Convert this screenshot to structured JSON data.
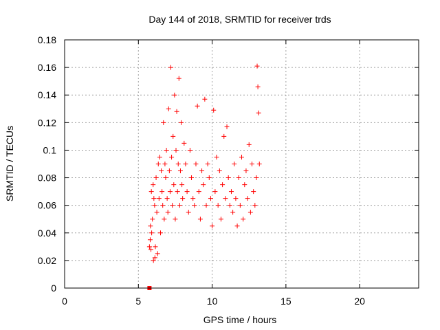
{
  "chart_data": {
    "type": "scatter",
    "title": "Day 144 of 2018, SRMTID for receiver trds",
    "xlabel": "GPS time / hours",
    "ylabel": "SRMTID / TECUs",
    "xlim": [
      0,
      24
    ],
    "ylim": [
      0,
      0.18
    ],
    "x_ticks": [
      0,
      5,
      10,
      15,
      20
    ],
    "x_tick_labels": [
      "0",
      "5",
      "10",
      "15",
      "20"
    ],
    "y_ticks": [
      0,
      0.02,
      0.04,
      0.06,
      0.08,
      0.1,
      0.12,
      0.14,
      0.16,
      0.18
    ],
    "y_tick_labels": [
      "0",
      "0.02",
      "0.04",
      "0.06",
      "0.08",
      "0.1",
      "0.12",
      "0.14",
      "0.16",
      "0.18"
    ],
    "grid": true,
    "marker": "plus",
    "marker_color": "#ff0000",
    "series": [
      {
        "x": [
          5.75,
          5.8,
          5.82,
          5.85,
          5.88,
          5.9,
          5.95,
          6.0,
          6.02,
          6.05,
          6.1,
          6.12,
          6.15,
          6.2,
          6.25,
          6.3,
          6.35,
          6.4,
          6.45,
          6.5,
          6.55,
          6.6,
          6.65,
          6.7,
          6.75,
          6.8,
          6.85,
          6.9,
          6.95,
          7.0,
          7.05,
          7.1,
          7.15,
          7.2,
          7.25,
          7.3,
          7.35,
          7.4,
          7.45,
          7.5,
          7.55,
          7.6,
          7.65,
          7.7,
          7.75,
          7.8,
          7.85,
          7.9,
          7.95,
          8.0,
          8.1,
          8.2,
          8.3,
          8.4,
          8.5,
          8.6,
          8.7,
          8.8,
          8.9,
          9.0,
          9.1,
          9.2,
          9.3,
          9.4,
          9.5,
          9.6,
          9.7,
          9.8,
          9.9,
          10.0,
          10.1,
          10.2,
          10.3,
          10.4,
          10.5,
          10.6,
          10.7,
          10.8,
          10.9,
          11.0,
          11.1,
          11.2,
          11.3,
          11.4,
          11.5,
          11.6,
          11.7,
          11.8,
          11.9,
          12.0,
          12.1,
          12.2,
          12.3,
          12.4,
          12.5,
          12.6,
          12.7,
          12.8,
          12.9,
          13.0,
          13.05,
          13.1,
          13.15,
          13.2
        ],
        "y": [
          0.03,
          0.035,
          0.045,
          0.028,
          0.07,
          0.04,
          0.05,
          0.075,
          0.02,
          0.065,
          0.06,
          0.022,
          0.03,
          0.08,
          0.055,
          0.025,
          0.09,
          0.065,
          0.095,
          0.04,
          0.085,
          0.07,
          0.06,
          0.12,
          0.05,
          0.09,
          0.08,
          0.1,
          0.065,
          0.055,
          0.13,
          0.085,
          0.07,
          0.16,
          0.095,
          0.06,
          0.11,
          0.075,
          0.14,
          0.05,
          0.1,
          0.128,
          0.07,
          0.09,
          0.152,
          0.06,
          0.085,
          0.12,
          0.075,
          0.065,
          0.105,
          0.09,
          0.07,
          0.055,
          0.1,
          0.08,
          0.065,
          0.06,
          0.09,
          0.132,
          0.07,
          0.05,
          0.085,
          0.075,
          0.137,
          0.06,
          0.09,
          0.08,
          0.065,
          0.045,
          0.129,
          0.07,
          0.095,
          0.06,
          0.085,
          0.05,
          0.075,
          0.11,
          0.065,
          0.117,
          0.08,
          0.06,
          0.07,
          0.055,
          0.09,
          0.065,
          0.045,
          0.08,
          0.06,
          0.095,
          0.05,
          0.075,
          0.085,
          0.065,
          0.104,
          0.055,
          0.09,
          0.07,
          0.06,
          0.08,
          0.161,
          0.146,
          0.127,
          0.09
        ]
      }
    ],
    "special_point": {
      "x": 5.75,
      "y": 0.0
    }
  }
}
